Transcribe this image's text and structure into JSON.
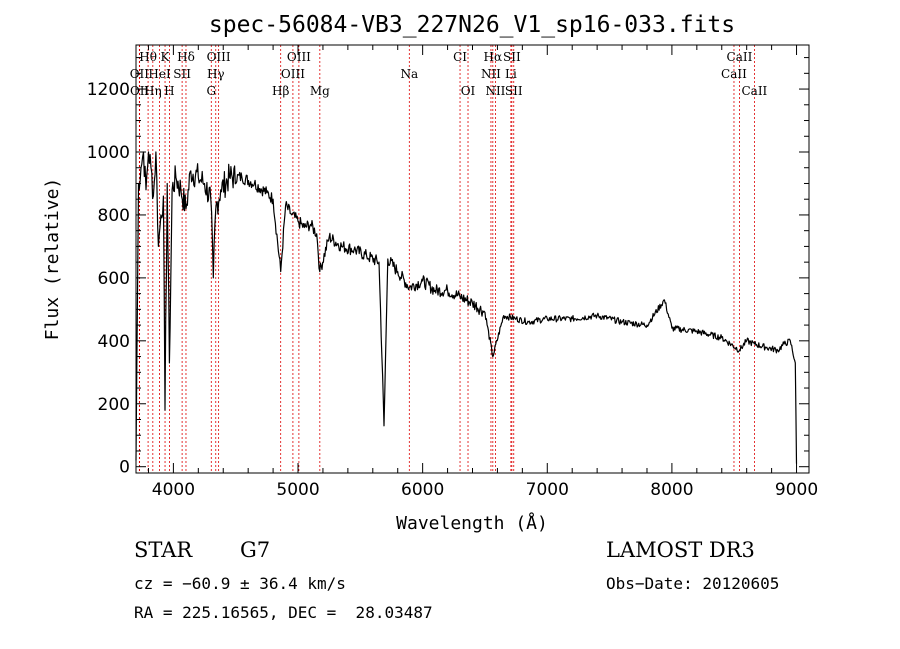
{
  "chart_data": {
    "type": "line",
    "title": "spec-56084-VB3_227N26_V1_sp16-033.fits",
    "xlabel": "Wavelength (Å)",
    "ylabel": "Flux (relative)",
    "xlim": [
      3700,
      9100
    ],
    "ylim": [
      -20,
      1340
    ],
    "x_ticks": [
      4000,
      5000,
      6000,
      7000,
      8000,
      9000
    ],
    "x_tick_labels": [
      "4000",
      "5000",
      "6000",
      "7000",
      "8000",
      "9000"
    ],
    "y_ticks": [
      0,
      200,
      400,
      600,
      800,
      1000,
      1200
    ],
    "y_tick_labels": [
      "0",
      "200",
      "400",
      "600",
      "800",
      "1000",
      "1200"
    ],
    "series": [
      {
        "name": "spectrum",
        "x": [
          3700,
          3720,
          3740,
          3760,
          3780,
          3800,
          3820,
          3840,
          3860,
          3880,
          3900,
          3920,
          3933,
          3950,
          3968,
          3990,
          4020,
          4060,
          4101,
          4140,
          4200,
          4250,
          4300,
          4320,
          4340,
          4380,
          4450,
          4550,
          4650,
          4750,
          4800,
          4861,
          4900,
          4950,
          5000,
          5050,
          5100,
          5150,
          5175,
          5250,
          5350,
          5450,
          5550,
          5650,
          5690,
          5720,
          5800,
          5893,
          6000,
          6100,
          6200,
          6300,
          6400,
          6500,
          6563,
          6650,
          6750,
          6850,
          7000,
          7200,
          7400,
          7600,
          7800,
          7940,
          8000,
          8200,
          8400,
          8542,
          8600,
          8662,
          8750,
          8850,
          8900,
          8950,
          8990,
          9000
        ],
        "y": [
          20,
          900,
          950,
          1000,
          880,
          1000,
          950,
          860,
          1000,
          700,
          800,
          860,
          180,
          900,
          330,
          880,
          920,
          880,
          820,
          940,
          920,
          900,
          850,
          600,
          820,
          880,
          920,
          920,
          900,
          870,
          850,
          620,
          830,
          800,
          780,
          760,
          770,
          740,
          620,
          730,
          700,
          690,
          670,
          650,
          130,
          660,
          620,
          570,
          590,
          560,
          560,
          540,
          520,
          490,
          350,
          480,
          470,
          460,
          470,
          470,
          480,
          460,
          450,
          530,
          440,
          430,
          410,
          370,
          400,
          390,
          380,
          370,
          390,
          400,
          330,
          10
        ]
      }
    ],
    "line_groups": [
      {
        "row": 1,
        "lines": [
          {
            "label": "Hθ",
            "x": 3797
          },
          {
            "label": "K",
            "x": 3933
          },
          {
            "label": "Hδ",
            "x": 4101
          },
          {
            "label": "OIII",
            "x": 4363
          },
          {
            "label": "OIII",
            "x": 5007
          },
          {
            "label": "CI",
            "x": 6300
          },
          {
            "label": "Hα",
            "x": 6563
          },
          {
            "label": "SII",
            "x": 6716
          },
          {
            "label": "CaII",
            "x": 8542
          }
        ]
      },
      {
        "row": 2,
        "lines": [
          {
            "label": "OII",
            "x": 3727
          },
          {
            "label": "HeI",
            "x": 3889
          },
          {
            "label": "SII",
            "x": 4070
          },
          {
            "label": "Hγ",
            "x": 4340
          },
          {
            "label": "OIII",
            "x": 4959
          },
          {
            "label": "Na",
            "x": 5893
          },
          {
            "label": "NII",
            "x": 6548
          },
          {
            "label": "Li",
            "x": 6708
          },
          {
            "label": "CaII",
            "x": 8498
          }
        ]
      },
      {
        "row": 3,
        "lines": [
          {
            "label": "OII",
            "x": 3729
          },
          {
            "label": "Hη",
            "x": 3835
          },
          {
            "label": "H",
            "x": 3968
          },
          {
            "label": "G",
            "x": 4304
          },
          {
            "label": "Hβ",
            "x": 4861
          },
          {
            "label": "Mg",
            "x": 5175
          },
          {
            "label": "OI",
            "x": 6364
          },
          {
            "label": "NII",
            "x": 6584
          },
          {
            "label": "SII",
            "x": 6731
          },
          {
            "label": "CaII",
            "x": 8662
          }
        ]
      }
    ]
  },
  "info": {
    "object_class": "STAR",
    "subclass": "G7",
    "survey": "LAMOST DR3",
    "cz": "cz = −60.9 ± 36.4 km/s",
    "obs_date": "Obs−Date: 20120605",
    "coords": "RA = 225.16565, DEC =  28.03487"
  }
}
